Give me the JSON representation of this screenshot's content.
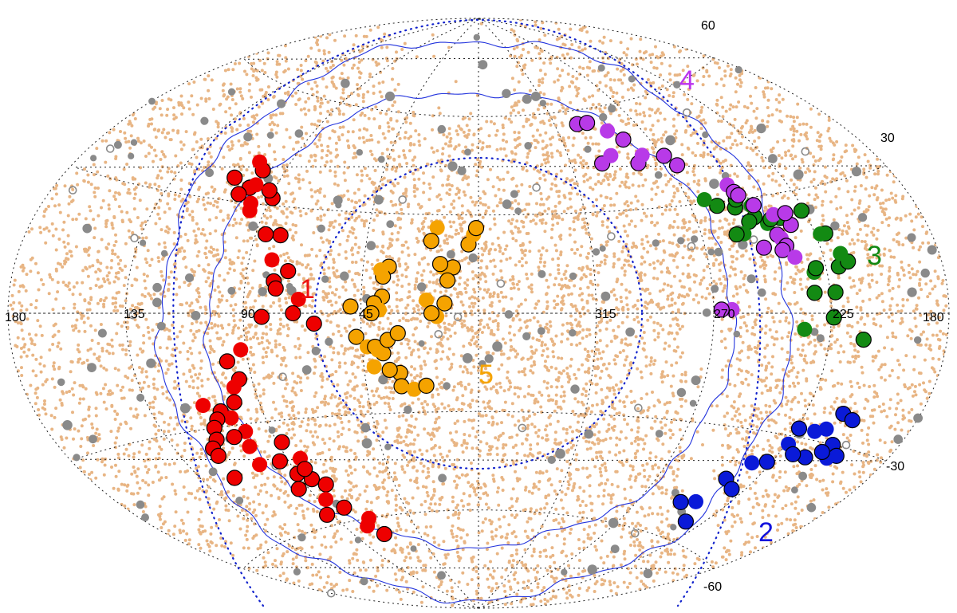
{
  "chart_data": {
    "type": "scatter",
    "projection": "aitoff",
    "grid": true,
    "longitude_labels": [
      "180",
      "135",
      "90",
      "45",
      "315",
      "270",
      "225",
      "180"
    ],
    "latitude_labels": [
      "60",
      "30",
      "-30",
      "-60"
    ],
    "group_labels": [
      {
        "text": "1",
        "color": "#ee1111"
      },
      {
        "text": "2",
        "color": "#1111dd"
      },
      {
        "text": "3",
        "color": "#118811"
      },
      {
        "text": "4",
        "color": "#bb33ee"
      },
      {
        "text": "5",
        "color": "#f5a300"
      }
    ],
    "colors": {
      "background_points": "#e8b584",
      "grey_points": "#8a8a8a",
      "group1": "#ee0000",
      "group2": "#0a1ad8",
      "group3": "#138a13",
      "group4": "#b83ae8",
      "group5": "#f5a300",
      "contour": "#2233dd",
      "dotted_circles": "#1122cc"
    },
    "series": [
      {
        "group": "1",
        "color": "#ee0000",
        "points": [
          [
            83,
            -1
          ],
          [
            79,
            9
          ],
          [
            81,
            15
          ],
          [
            80,
            22
          ],
          [
            86,
            22
          ],
          [
            97,
            30
          ],
          [
            101,
            34
          ],
          [
            100,
            39
          ],
          [
            104,
            41
          ],
          [
            110,
            36
          ],
          [
            104,
            32
          ],
          [
            96,
            28
          ],
          [
            89,
            32
          ],
          [
            92,
            34
          ],
          [
            99,
            35
          ],
          [
            74,
            12
          ],
          [
            78,
            7
          ],
          [
            69,
            4
          ],
          [
            71,
            0
          ],
          [
            63,
            -3
          ],
          [
            92,
            -10
          ],
          [
            98,
            -13
          ],
          [
            95,
            -18
          ],
          [
            98,
            -20
          ],
          [
            100,
            -24
          ],
          [
            107,
            -26
          ],
          [
            104,
            -28
          ],
          [
            110,
            -28
          ],
          [
            113,
            -30
          ],
          [
            101,
            -32
          ],
          [
            107,
            -33
          ],
          [
            115,
            -33
          ],
          [
            103,
            -36
          ],
          [
            119,
            -35
          ],
          [
            119,
            -37
          ],
          [
            104,
            -41
          ],
          [
            94,
            -41
          ],
          [
            90,
            -45
          ],
          [
            84,
            -41
          ],
          [
            85,
            -47
          ],
          [
            80,
            -49
          ],
          [
            86,
            -53
          ],
          [
            95,
            -49
          ],
          [
            80,
            -56
          ],
          [
            71,
            -60
          ],
          [
            70,
            -65
          ],
          [
            88,
            -36
          ],
          [
            113,
            -24
          ],
          [
            120,
            -43
          ],
          [
            85,
            -44
          ],
          [
            76,
            -62
          ],
          [
            93,
            -57
          ]
        ]
      },
      {
        "group": "2",
        "color": "#0a1ad8",
        "points": [
          [
            210,
            -23
          ],
          [
            205,
            -24
          ],
          [
            213,
            -27
          ],
          [
            206,
            -30
          ],
          [
            201,
            -32
          ],
          [
            204,
            -33
          ],
          [
            208,
            -32
          ],
          [
            213,
            -34
          ],
          [
            224,
            -32
          ],
          [
            219,
            -34
          ],
          [
            227,
            -37
          ],
          [
            233,
            -38
          ],
          [
            238,
            -43
          ],
          [
            231,
            -45
          ],
          [
            241,
            -50
          ],
          [
            234,
            -55
          ],
          [
            248,
            -51
          ],
          [
            217,
            -28
          ],
          [
            224,
            -28
          ]
        ]
      },
      {
        "group": "3",
        "color": "#138a13",
        "points": [
          [
            212,
            -6
          ],
          [
            224,
            -1
          ],
          [
            235,
            -4
          ],
          [
            223,
            5
          ],
          [
            231,
            5
          ],
          [
            230,
            10
          ],
          [
            220,
            11
          ],
          [
            216,
            12
          ],
          [
            218,
            14
          ],
          [
            229,
            11
          ],
          [
            221,
            19
          ],
          [
            223,
            19
          ],
          [
            226,
            25
          ],
          [
            236,
            24
          ],
          [
            242,
            23
          ],
          [
            246,
            25
          ],
          [
            249,
            24
          ],
          [
            253,
            21
          ],
          [
            256,
            21
          ],
          [
            259,
            29
          ],
          [
            263,
            31
          ],
          [
            252,
            28
          ],
          [
            250,
            30
          ],
          [
            245,
            28
          ],
          [
            240,
            24
          ]
        ]
      },
      {
        "group": "4",
        "color": "#b83ae8",
        "points": [
          [
            302,
            56
          ],
          [
            296,
            56
          ],
          [
            288,
            53
          ],
          [
            283,
            50
          ],
          [
            283,
            43
          ],
          [
            279,
            45
          ],
          [
            269,
            44
          ],
          [
            266,
            41
          ],
          [
            250,
            34
          ],
          [
            249,
            32
          ],
          [
            248,
            31
          ],
          [
            238,
            25
          ],
          [
            233,
            22
          ],
          [
            240,
            20
          ],
          [
            239,
            19
          ],
          [
            238,
            17
          ],
          [
            240,
            16
          ],
          [
            236,
            14
          ],
          [
            247,
            17
          ],
          [
            233,
            25
          ],
          [
            263,
            1
          ],
          [
            267,
            1
          ],
          [
            300,
            44
          ],
          [
            294,
            46
          ],
          [
            244,
            28
          ]
        ]
      },
      {
        "group": "5",
        "color": "#f5a300",
        "points": [
          [
            35,
            14
          ],
          [
            37,
            11
          ],
          [
            38,
            13
          ],
          [
            37,
            5
          ],
          [
            40,
            3
          ],
          [
            38,
            1
          ],
          [
            41,
            0
          ],
          [
            49,
            2
          ],
          [
            20,
            4
          ],
          [
            13,
            3
          ],
          [
            10,
            14
          ],
          [
            14,
            14
          ],
          [
            15,
            15
          ],
          [
            12,
            10
          ],
          [
            16,
            -1
          ],
          [
            18,
            0
          ],
          [
            4,
            21
          ],
          [
            2,
            24
          ],
          [
            1,
            26
          ],
          [
            47,
            -7
          ],
          [
            43,
            -10
          ],
          [
            40,
            -10
          ],
          [
            37,
            -12
          ],
          [
            39,
            -11
          ],
          [
            35,
            -8
          ],
          [
            31,
            -6
          ],
          [
            41,
            -16
          ],
          [
            31,
            -18
          ],
          [
            31,
            -22
          ],
          [
            26,
            -23
          ],
          [
            21,
            -22
          ],
          [
            35,
            -17
          ],
          [
            17,
            26
          ],
          [
            19,
            22
          ]
        ]
      }
    ]
  }
}
